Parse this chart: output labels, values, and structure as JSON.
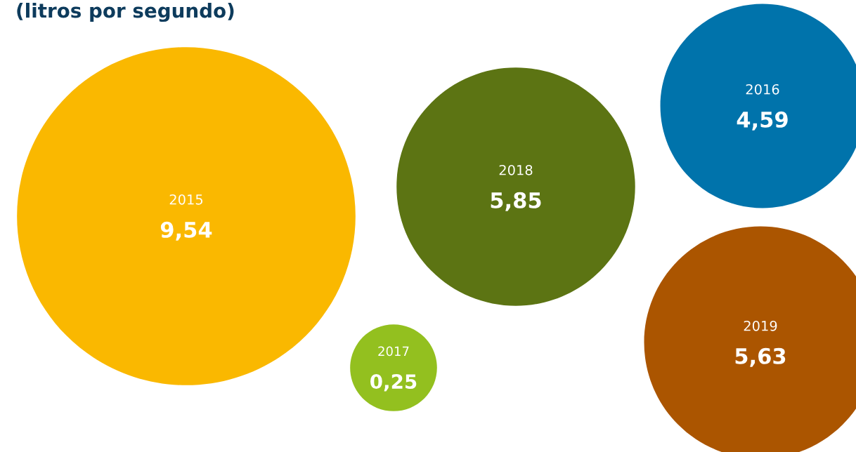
{
  "chart_data": {
    "type": "other",
    "subtitle": "(litros por segundo)",
    "categories": [
      "2015",
      "2018",
      "2016",
      "2017",
      "2019"
    ],
    "values": [
      9.54,
      5.85,
      4.59,
      0.25,
      5.63
    ],
    "value_labels": [
      "9,54",
      "5,85",
      "4,59",
      "0,25",
      "5,63"
    ],
    "colors": [
      "#fab800",
      "#5c7413",
      "#0073ab",
      "#93c01f",
      "#ab5500"
    ]
  }
}
